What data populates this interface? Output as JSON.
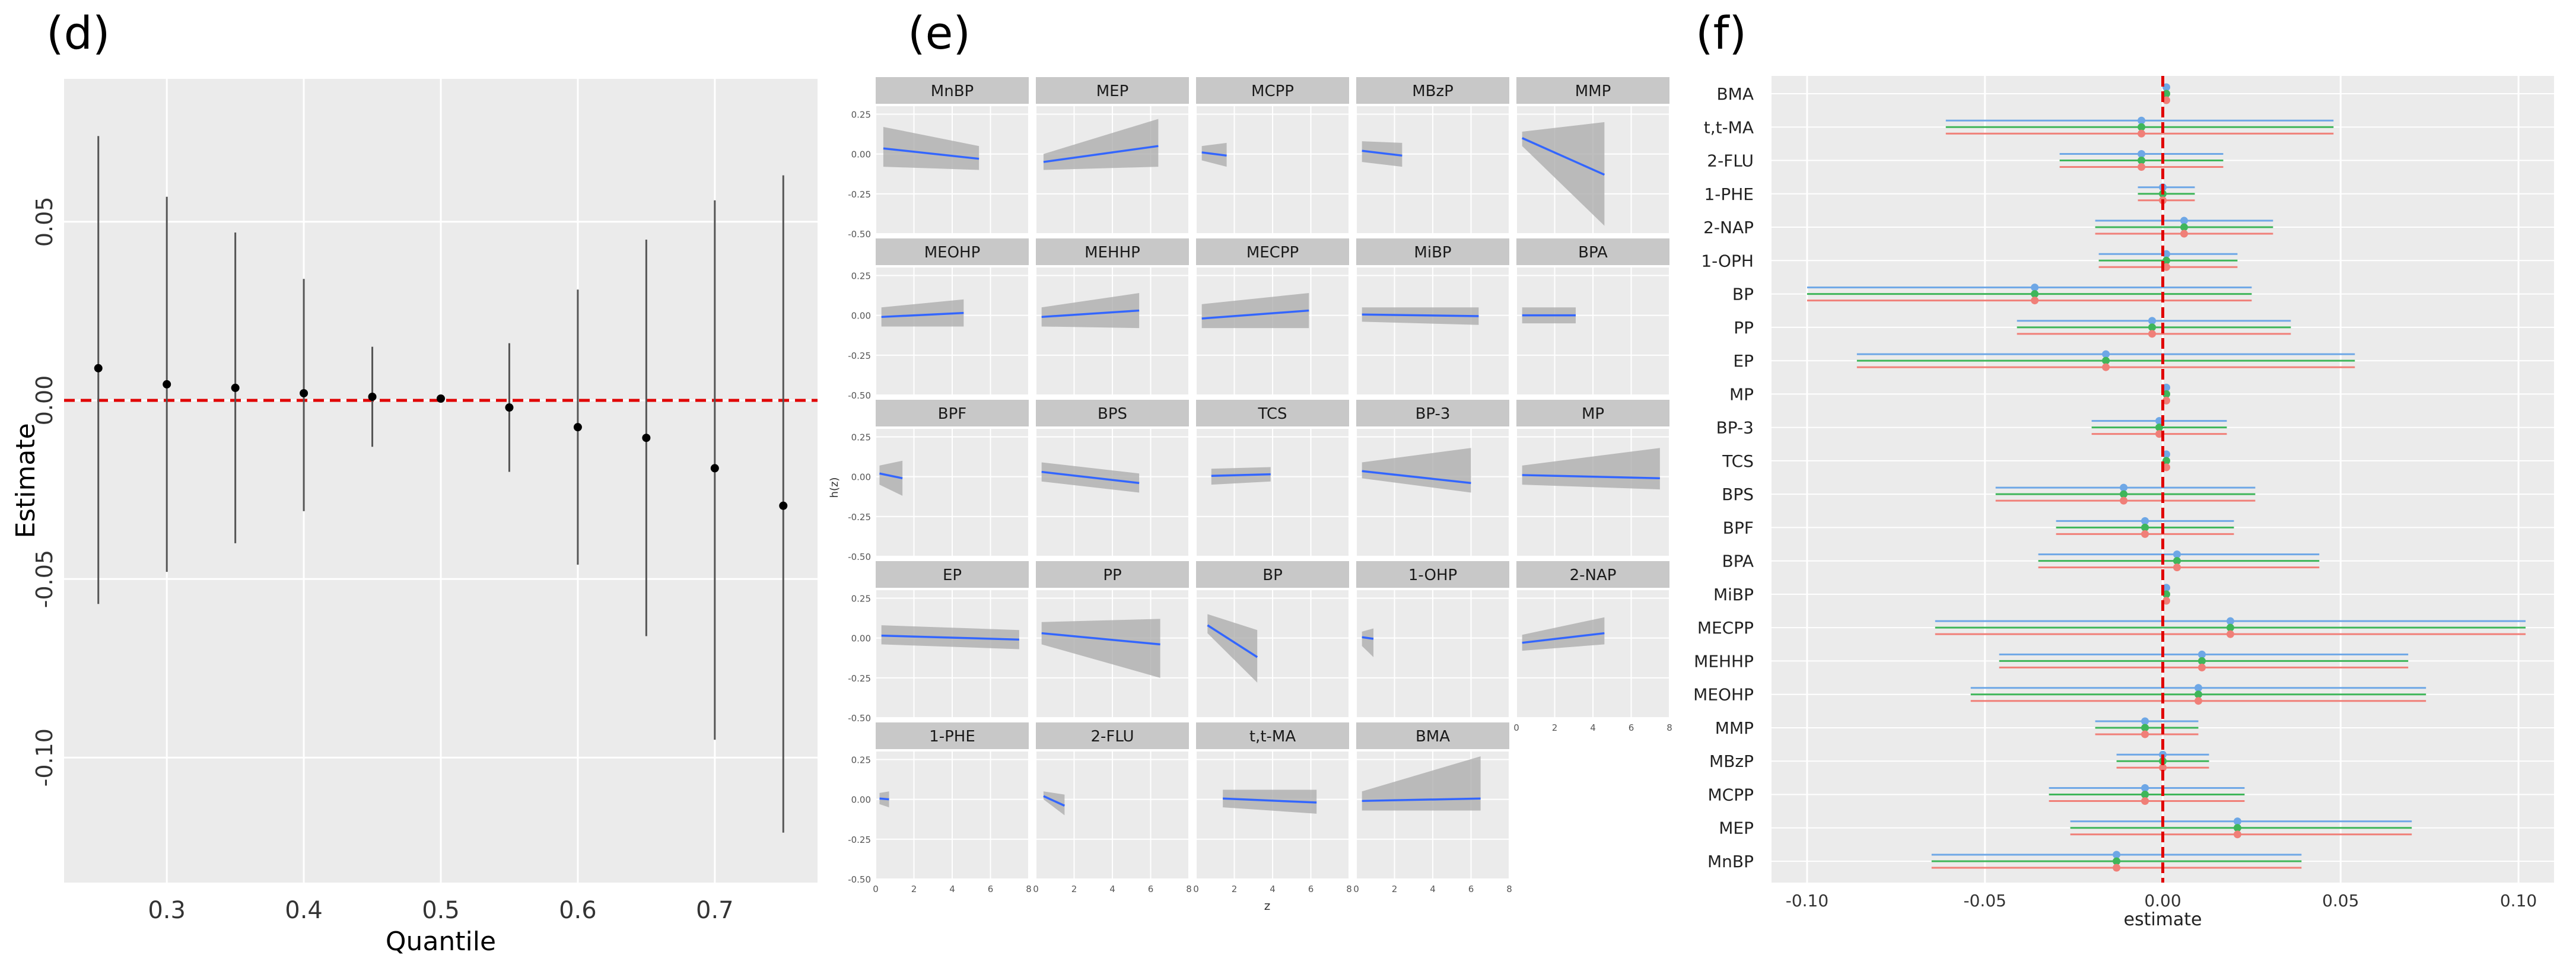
{
  "chart_data": [
    {
      "type": "scatter",
      "panel_label": "(d)",
      "xlabel": "Quantile",
      "ylabel": "Estimate",
      "xlim": [
        0.225,
        0.775
      ],
      "ylim": [
        -0.135,
        0.09
      ],
      "x_ticks": [
        "0.3",
        "0.4",
        "0.5",
        "0.6",
        "0.7"
      ],
      "x_tick_values": [
        0.3,
        0.4,
        0.5,
        0.6,
        0.7
      ],
      "y_ticks": [
        "-0.10",
        "-0.05",
        "0.00",
        "0.05"
      ],
      "y_tick_values": [
        -0.1,
        -0.05,
        0.0,
        0.05
      ],
      "reference_line": 0,
      "points": [
        {
          "x": 0.25,
          "y": 0.009,
          "lo": -0.057,
          "hi": 0.074
        },
        {
          "x": 0.3,
          "y": 0.0045,
          "lo": -0.048,
          "hi": 0.057
        },
        {
          "x": 0.35,
          "y": 0.0035,
          "lo": -0.04,
          "hi": 0.047
        },
        {
          "x": 0.4,
          "y": 0.002,
          "lo": -0.031,
          "hi": 0.034
        },
        {
          "x": 0.45,
          "y": 0.001,
          "lo": -0.013,
          "hi": 0.015
        },
        {
          "x": 0.5,
          "y": 0.0005,
          "lo": 0.0005,
          "hi": 0.0005
        },
        {
          "x": 0.55,
          "y": -0.002,
          "lo": -0.02,
          "hi": 0.016
        },
        {
          "x": 0.6,
          "y": -0.0075,
          "lo": -0.046,
          "hi": 0.031
        },
        {
          "x": 0.65,
          "y": -0.0105,
          "lo": -0.066,
          "hi": 0.045
        },
        {
          "x": 0.7,
          "y": -0.019,
          "lo": -0.095,
          "hi": 0.056
        },
        {
          "x": 0.75,
          "y": -0.0295,
          "lo": -0.121,
          "hi": 0.063
        }
      ]
    },
    {
      "type": "line",
      "panel_label": "(e)",
      "xlabel": "z",
      "ylabel": "h(z)",
      "xlim": [
        0,
        8
      ],
      "ylim": [
        -0.5,
        0.3
      ],
      "x_ticks": [
        "0",
        "2",
        "4",
        "6",
        "8"
      ],
      "x_tick_values": [
        0,
        2,
        4,
        6,
        8
      ],
      "y_ticks": [
        "0.25",
        "0.00",
        "-0.25",
        "-0.50"
      ],
      "y_tick_values": [
        0.25,
        0.0,
        -0.25,
        -0.5
      ],
      "facets": [
        {
          "name": "MnBP",
          "x0": 0.4,
          "x1": 5.4,
          "y0": 0.035,
          "y1": -0.03,
          "lo0": -0.08,
          "hi0": 0.17,
          "lo1": -0.1,
          "hi1": 0.05
        },
        {
          "name": "MEP",
          "x0": 0.4,
          "x1": 6.4,
          "y0": -0.05,
          "y1": 0.05,
          "lo0": -0.1,
          "hi0": 0.0,
          "lo1": -0.08,
          "hi1": 0.22
        },
        {
          "name": "MCPP",
          "x0": 0.3,
          "x1": 1.6,
          "y0": 0.01,
          "y1": -0.01,
          "lo0": -0.04,
          "hi0": 0.05,
          "lo1": -0.08,
          "hi1": 0.07
        },
        {
          "name": "MBzP",
          "x0": 0.3,
          "x1": 2.4,
          "y0": 0.02,
          "y1": -0.01,
          "lo0": -0.05,
          "hi0": 0.08,
          "lo1": -0.08,
          "hi1": 0.07
        },
        {
          "name": "MMP",
          "x0": 0.3,
          "x1": 4.6,
          "y0": 0.1,
          "y1": -0.13,
          "lo0": 0.05,
          "hi0": 0.14,
          "lo1": -0.45,
          "hi1": 0.2
        },
        {
          "name": "MEOHP",
          "x0": 0.3,
          "x1": 4.6,
          "y0": -0.01,
          "y1": 0.015,
          "lo0": -0.07,
          "hi0": 0.05,
          "lo1": -0.07,
          "hi1": 0.1
        },
        {
          "name": "MEHHP",
          "x0": 0.3,
          "x1": 5.4,
          "y0": -0.01,
          "y1": 0.03,
          "lo0": -0.07,
          "hi0": 0.05,
          "lo1": -0.08,
          "hi1": 0.14
        },
        {
          "name": "MECPP",
          "x0": 0.3,
          "x1": 5.9,
          "y0": -0.02,
          "y1": 0.03,
          "lo0": -0.08,
          "hi0": 0.07,
          "lo1": -0.08,
          "hi1": 0.14
        },
        {
          "name": "MiBP",
          "x0": 0.3,
          "x1": 6.4,
          "y0": 0.005,
          "y1": -0.005,
          "lo0": -0.04,
          "hi0": 0.05,
          "lo1": -0.06,
          "hi1": 0.05
        },
        {
          "name": "BPA",
          "x0": 0.3,
          "x1": 3.1,
          "y0": 0.0,
          "y1": 0.0,
          "lo0": -0.05,
          "hi0": 0.05,
          "lo1": -0.05,
          "hi1": 0.05
        },
        {
          "name": "BPF",
          "x0": 0.2,
          "x1": 1.4,
          "y0": 0.02,
          "y1": -0.01,
          "lo0": -0.05,
          "hi0": 0.07,
          "lo1": -0.12,
          "hi1": 0.1
        },
        {
          "name": "BPS",
          "x0": 0.3,
          "x1": 5.4,
          "y0": 0.03,
          "y1": -0.04,
          "lo0": -0.03,
          "hi0": 0.09,
          "lo1": -0.1,
          "hi1": 0.02
        },
        {
          "name": "TCS",
          "x0": 0.8,
          "x1": 3.9,
          "y0": 0.005,
          "y1": 0.015,
          "lo0": -0.05,
          "hi0": 0.05,
          "lo1": -0.03,
          "hi1": 0.06
        },
        {
          "name": "BP-3",
          "x0": 0.3,
          "x1": 6.0,
          "y0": 0.035,
          "y1": -0.04,
          "lo0": -0.01,
          "hi0": 0.09,
          "lo1": -0.1,
          "hi1": 0.18
        },
        {
          "name": "MP",
          "x0": 0.3,
          "x1": 7.5,
          "y0": 0.01,
          "y1": -0.01,
          "lo0": -0.05,
          "hi0": 0.07,
          "lo1": -0.08,
          "hi1": 0.18
        },
        {
          "name": "EP",
          "x0": 0.3,
          "x1": 7.5,
          "y0": 0.015,
          "y1": -0.01,
          "lo0": -0.04,
          "hi0": 0.08,
          "lo1": -0.07,
          "hi1": 0.05
        },
        {
          "name": "PP",
          "x0": 0.3,
          "x1": 6.5,
          "y0": 0.03,
          "y1": -0.04,
          "lo0": -0.04,
          "hi0": 0.1,
          "lo1": -0.25,
          "hi1": 0.12
        },
        {
          "name": "BP",
          "x0": 0.6,
          "x1": 3.2,
          "y0": 0.08,
          "y1": -0.12,
          "lo0": 0.03,
          "hi0": 0.15,
          "lo1": -0.28,
          "hi1": 0.05
        },
        {
          "name": "1-OHP",
          "x0": 0.3,
          "x1": 0.9,
          "y0": 0.005,
          "y1": -0.005,
          "lo0": -0.05,
          "hi0": 0.04,
          "lo1": -0.12,
          "hi1": 0.06
        },
        {
          "name": "2-NAP",
          "x0": 0.3,
          "x1": 4.6,
          "y0": -0.03,
          "y1": 0.03,
          "lo0": -0.08,
          "hi0": 0.02,
          "lo1": -0.04,
          "hi1": 0.13
        },
        {
          "name": "1-PHE",
          "x0": 0.2,
          "x1": 0.7,
          "y0": 0.005,
          "y1": 0.0,
          "lo0": -0.03,
          "hi0": 0.04,
          "lo1": -0.05,
          "hi1": 0.05
        },
        {
          "name": "2-FLU",
          "x0": 0.4,
          "x1": 1.5,
          "y0": 0.02,
          "y1": -0.04,
          "lo0": 0.0,
          "hi0": 0.05,
          "lo1": -0.1,
          "hi1": 0.03
        },
        {
          "name": "t,t-MA",
          "x0": 1.4,
          "x1": 6.3,
          "y0": 0.005,
          "y1": -0.02,
          "lo0": -0.05,
          "hi0": 0.06,
          "lo1": -0.09,
          "hi1": 0.06
        },
        {
          "name": "BMA",
          "x0": 0.3,
          "x1": 6.5,
          "y0": -0.01,
          "y1": 0.005,
          "lo0": -0.07,
          "hi0": 0.05,
          "lo1": -0.07,
          "hi1": 0.27
        }
      ]
    },
    {
      "type": "scatter",
      "panel_label": "(f)",
      "xlabel": "estimate",
      "xlim": [
        -0.11,
        0.11
      ],
      "x_ticks": [
        "-0.10",
        "-0.05",
        "0.00",
        "0.05",
        "0.10"
      ],
      "x_tick_values": [
        -0.1,
        -0.05,
        0.0,
        0.05,
        0.1
      ],
      "reference_line": 0,
      "series": [
        {
          "name": "series-1",
          "color": "#6ea7e6"
        },
        {
          "name": "series-2",
          "color": "#3fb65a"
        },
        {
          "name": "series-3",
          "color": "#f07f78"
        }
      ],
      "rows": [
        {
          "name": "BMA",
          "estimate": 0.001,
          "lo": 0.0,
          "hi": 0.002
        },
        {
          "name": "t,t-MA",
          "estimate": -0.006,
          "lo": -0.061,
          "hi": 0.048
        },
        {
          "name": "2-FLU",
          "estimate": -0.006,
          "lo": -0.029,
          "hi": 0.017
        },
        {
          "name": "1-PHE",
          "estimate": 0.0,
          "lo": -0.007,
          "hi": 0.009
        },
        {
          "name": "2-NAP",
          "estimate": 0.006,
          "lo": -0.019,
          "hi": 0.031
        },
        {
          "name": "1-OPH",
          "estimate": 0.001,
          "lo": -0.018,
          "hi": 0.021
        },
        {
          "name": "BP",
          "estimate": -0.036,
          "lo": -0.1,
          "hi": 0.025
        },
        {
          "name": "PP",
          "estimate": -0.003,
          "lo": -0.041,
          "hi": 0.036
        },
        {
          "name": "EP",
          "estimate": -0.016,
          "lo": -0.086,
          "hi": 0.054
        },
        {
          "name": "MP",
          "estimate": 0.001,
          "lo": 0.0,
          "hi": 0.002
        },
        {
          "name": "BP-3",
          "estimate": -0.001,
          "lo": -0.02,
          "hi": 0.018
        },
        {
          "name": "TCS",
          "estimate": 0.001,
          "lo": 0.0,
          "hi": 0.002
        },
        {
          "name": "BPS",
          "estimate": -0.011,
          "lo": -0.047,
          "hi": 0.026
        },
        {
          "name": "BPF",
          "estimate": -0.005,
          "lo": -0.03,
          "hi": 0.02
        },
        {
          "name": "BPA",
          "estimate": 0.004,
          "lo": -0.035,
          "hi": 0.044
        },
        {
          "name": "MiBP",
          "estimate": 0.001,
          "lo": 0.0,
          "hi": 0.002
        },
        {
          "name": "MECPP",
          "estimate": 0.019,
          "lo": -0.064,
          "hi": 0.102
        },
        {
          "name": "MEHHP",
          "estimate": 0.011,
          "lo": -0.046,
          "hi": 0.069
        },
        {
          "name": "MEOHP",
          "estimate": 0.01,
          "lo": -0.054,
          "hi": 0.074
        },
        {
          "name": "MMP",
          "estimate": -0.005,
          "lo": -0.019,
          "hi": 0.01
        },
        {
          "name": "MBzP",
          "estimate": 0.0,
          "lo": -0.013,
          "hi": 0.013
        },
        {
          "name": "MCPP",
          "estimate": -0.005,
          "lo": -0.032,
          "hi": 0.023
        },
        {
          "name": "MEP",
          "estimate": 0.021,
          "lo": -0.026,
          "hi": 0.07
        },
        {
          "name": "MnBP",
          "estimate": -0.013,
          "lo": -0.065,
          "hi": 0.039
        }
      ]
    }
  ]
}
